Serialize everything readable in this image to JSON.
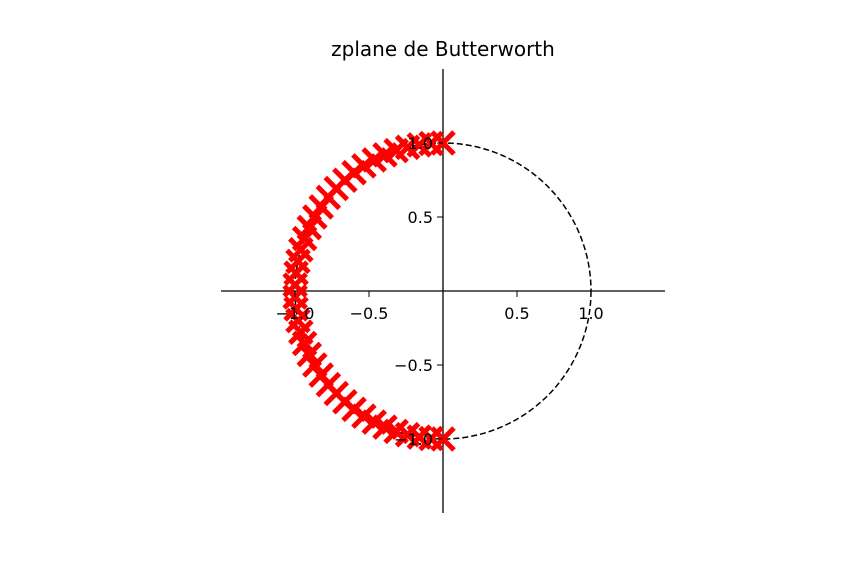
{
  "chart_data": {
    "type": "scatter",
    "title": "zplane de Butterworth",
    "xlabel": "",
    "ylabel": "",
    "xlim": [
      -1.5,
      1.5
    ],
    "ylim": [
      -1.5,
      1.5
    ],
    "grid": false,
    "legend": "none",
    "x_ticks": [
      {
        "value": -1.0,
        "label": "−1.0"
      },
      {
        "value": -0.5,
        "label": "−0.5"
      },
      {
        "value": 0.5,
        "label": "0.5"
      },
      {
        "value": 1.0,
        "label": "1.0"
      }
    ],
    "y_ticks": [
      {
        "value": 1.0,
        "label": "1.0"
      },
      {
        "value": 0.5,
        "label": "0.5"
      },
      {
        "value": -0.5,
        "label": "−0.5"
      },
      {
        "value": -1.0,
        "label": "−1.0"
      }
    ],
    "unit_circle": {
      "radius": 1.0,
      "style": "dashed",
      "color": "#000000"
    },
    "marker": "x",
    "marker_color": "#ff0000",
    "pole_count": 40,
    "pole_angle_range_deg": [
      90,
      270
    ],
    "pole_radius": 1.0
  }
}
